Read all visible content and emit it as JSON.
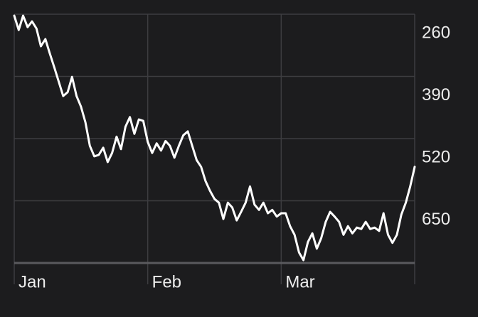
{
  "chart_data": {
    "type": "line",
    "categories": [
      "Jan",
      null,
      null,
      null,
      null,
      null,
      null,
      null,
      null,
      null,
      null,
      null,
      null,
      null,
      null,
      null,
      null,
      null,
      null,
      null,
      null,
      null,
      null,
      null,
      null,
      null,
      null,
      null,
      null,
      null,
      "Feb",
      null,
      null,
      null,
      null,
      null,
      null,
      null,
      null,
      null,
      null,
      null,
      null,
      null,
      null,
      null,
      null,
      null,
      null,
      null,
      null,
      null,
      null,
      null,
      null,
      null,
      null,
      null,
      null,
      null,
      "Mar",
      null,
      null,
      null,
      null,
      null,
      null,
      null,
      null,
      null,
      null,
      null,
      null,
      null,
      null,
      null,
      null,
      null,
      null,
      null,
      null,
      null,
      null,
      null,
      null,
      null,
      null,
      null,
      null,
      null,
      null
    ],
    "values": [
      263,
      293,
      263,
      287,
      275,
      290,
      327,
      312,
      342,
      371,
      401,
      431,
      423,
      391,
      431,
      453,
      486,
      535,
      557,
      554,
      539,
      569,
      550,
      516,
      542,
      495,
      475,
      510,
      480,
      483,
      527,
      550,
      530,
      545,
      525,
      535,
      560,
      535,
      513,
      505,
      535,
      565,
      579,
      609,
      629,
      646,
      654,
      688,
      654,
      664,
      691,
      673,
      654,
      620,
      658,
      669,
      654,
      676,
      669,
      683,
      676,
      676,
      703,
      721,
      758,
      774,
      736,
      718,
      750,
      728,
      694,
      673,
      683,
      694,
      721,
      703,
      718,
      706,
      709,
      694,
      709,
      706,
      713,
      676,
      721,
      738,
      721,
      679,
      654,
      620,
      579
    ],
    "color": "#ffffff",
    "ylim": [
      260,
      780
    ],
    "y_inverted": true,
    "yticks": [
      260,
      390,
      520,
      650
    ],
    "y_axis_side": "right",
    "grid": true
  }
}
